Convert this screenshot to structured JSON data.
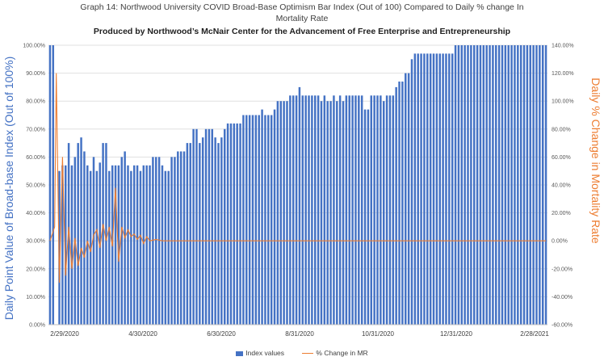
{
  "chart_data": {
    "type": "bar",
    "title": "Graph 14: Northwood University COVID Broad-Base Optimism Bar Index (Out of 100) Compared to Daily % change In",
    "title_line2": "Mortality Rate",
    "subtitle": "Produced by Northwood’s McNair Center for the Advancement of Free Enterprise and Entrepreneurship",
    "ylabel": "Daily Point Value of Broad-base Index (Out of 100%)",
    "y2label": "Daily % Change in Mortality Rate",
    "x_tick_labels": [
      "2/29/2020",
      "4/30/2020",
      "6/30/2020",
      "8/31/2020",
      "10/31/2020",
      "12/31/2020",
      "2/28/2021"
    ],
    "y_tick_labels": [
      "0.00%",
      "10.00%",
      "20.00%",
      "30.00%",
      "40.00%",
      "50.00%",
      "60.00%",
      "70.00%",
      "80.00%",
      "90.00%",
      "100.00%"
    ],
    "y2_tick_labels": [
      "-60.00%",
      "-40.00%",
      "-20.00%",
      "0.00%",
      "20.00%",
      "40.00%",
      "60.00%",
      "80.00%",
      "100.00%",
      "120.00%",
      "140.00%"
    ],
    "ylim": [
      0,
      100
    ],
    "y2lim": [
      -60,
      140
    ],
    "grid": true,
    "legend_position": "bottom",
    "colors": {
      "bars": "#4472c4",
      "line": "#ed7d31",
      "axis_title_left": "#4472c4",
      "axis_title_right": "#ed7d31"
    },
    "series": [
      {
        "name": "Index values",
        "kind": "bar",
        "axis": "left",
        "values": [
          100,
          100,
          0,
          55,
          57,
          57,
          65,
          57,
          60,
          65,
          67,
          62,
          57,
          55,
          60,
          55,
          58,
          65,
          65,
          55,
          57,
          57,
          57,
          60,
          62,
          57,
          55,
          57,
          57,
          55,
          57,
          57,
          57,
          60,
          60,
          60,
          57,
          55,
          55,
          60,
          60,
          62,
          62,
          62,
          65,
          65,
          70,
          70,
          65,
          67,
          70,
          70,
          70,
          67,
          65,
          67,
          70,
          72,
          72,
          72,
          72,
          72,
          75,
          75,
          75,
          75,
          75,
          75,
          77,
          75,
          75,
          75,
          77,
          80,
          80,
          80,
          80,
          82,
          82,
          82,
          85,
          82,
          82,
          82,
          82,
          82,
          82,
          80,
          82,
          80,
          80,
          82,
          80,
          82,
          80,
          82,
          82,
          82,
          82,
          82,
          82,
          77,
          77,
          82,
          82,
          82,
          82,
          80,
          82,
          82,
          82,
          85,
          87,
          87,
          90,
          90,
          95,
          97,
          97,
          97,
          97,
          97,
          97,
          97,
          97,
          97,
          97,
          97,
          97,
          97,
          100,
          100,
          100,
          100,
          100,
          100,
          100,
          100,
          100,
          100,
          100,
          100,
          100,
          100,
          100,
          100,
          100,
          100,
          100,
          100,
          100,
          100,
          100,
          100,
          100,
          100,
          100,
          100,
          100,
          100
        ]
      },
      {
        "name": "% Change in MR",
        "kind": "line",
        "axis": "right",
        "points": [
          [
            0,
            0
          ],
          [
            1.5,
            10
          ],
          [
            2,
            120
          ],
          [
            3,
            -30
          ],
          [
            4,
            60
          ],
          [
            5,
            -25
          ],
          [
            6,
            10
          ],
          [
            7,
            -20
          ],
          [
            8,
            2
          ],
          [
            9,
            -18
          ],
          [
            10,
            -5
          ],
          [
            11,
            -12
          ],
          [
            12,
            0
          ],
          [
            13,
            -8
          ],
          [
            14,
            4
          ],
          [
            15,
            8
          ],
          [
            16,
            -5
          ],
          [
            17,
            12
          ],
          [
            18,
            0
          ],
          [
            19,
            10
          ],
          [
            20,
            -4
          ],
          [
            21,
            38
          ],
          [
            22,
            -15
          ],
          [
            23,
            10
          ],
          [
            24,
            2
          ],
          [
            25,
            8
          ],
          [
            26,
            3
          ],
          [
            27,
            5
          ],
          [
            28,
            1
          ],
          [
            29,
            4
          ],
          [
            30,
            -2
          ],
          [
            31,
            3
          ],
          [
            32,
            0
          ],
          [
            34,
            1
          ],
          [
            36,
            0
          ],
          [
            159,
            0
          ]
        ]
      }
    ]
  }
}
